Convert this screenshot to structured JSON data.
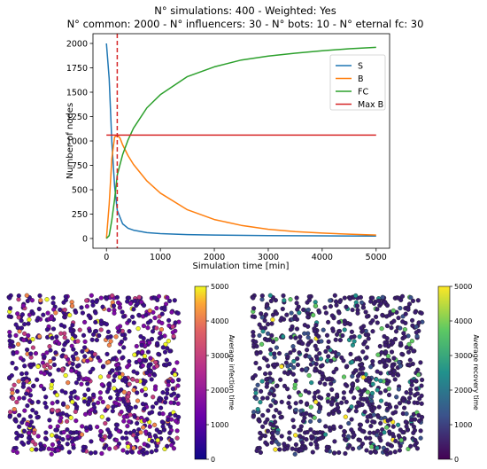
{
  "chart_data": [
    {
      "type": "line",
      "title_lines": [
        "N° simulations: 400 - Weighted: Yes",
        "N° common: 2000 - N° influencers: 30 - N° bots: 10 - N° eternal fc: 30"
      ],
      "xlabel": "Simulation time [min]",
      "ylabel": "Number of nodes",
      "xlim": [
        -250,
        5250
      ],
      "ylim": [
        -100,
        2100
      ],
      "xticks": [
        0,
        1000,
        2000,
        3000,
        4000,
        5000
      ],
      "yticks": [
        0,
        250,
        500,
        750,
        1000,
        1250,
        1500,
        1750,
        2000
      ],
      "grid": false,
      "legend_position": "upper right",
      "series": [
        {
          "name": "S",
          "color": "#1f77b4",
          "x": [
            0,
            50,
            100,
            150,
            200,
            300,
            400,
            500,
            750,
            1000,
            1500,
            2000,
            3000,
            4000,
            5000
          ],
          "y": [
            2000,
            1640,
            990,
            540,
            290,
            150,
            105,
            85,
            60,
            50,
            40,
            35,
            30,
            27,
            25
          ]
        },
        {
          "name": "B",
          "color": "#ff7f0e",
          "x": [
            0,
            50,
            100,
            150,
            200,
            250,
            300,
            400,
            500,
            750,
            1000,
            1500,
            2000,
            2500,
            3000,
            3500,
            4000,
            4500,
            5000
          ],
          "y": [
            0,
            350,
            820,
            1040,
            1060,
            1030,
            960,
            850,
            760,
            590,
            465,
            295,
            195,
            135,
            95,
            70,
            55,
            45,
            35
          ]
        },
        {
          "name": "FC",
          "color": "#2ca02c",
          "x": [
            0,
            50,
            100,
            150,
            200,
            300,
            400,
            500,
            750,
            1000,
            1500,
            2000,
            2500,
            3000,
            3500,
            4000,
            4500,
            5000
          ],
          "y": [
            0,
            30,
            190,
            400,
            650,
            860,
            1010,
            1130,
            1340,
            1475,
            1660,
            1760,
            1830,
            1870,
            1900,
            1925,
            1945,
            1960
          ]
        },
        {
          "name": "Max B",
          "color": "#d62728",
          "x": [
            0,
            5000
          ],
          "y": [
            1060,
            1060
          ]
        }
      ],
      "vline": {
        "x": 200,
        "color": "#d62728",
        "style": "dashed"
      }
    },
    {
      "type": "scatter",
      "colorbar_label": "Average infection time",
      "colormap": "plasma",
      "clim": [
        0,
        5000
      ],
      "colorbar_ticks": [
        0,
        1000,
        2000,
        3000,
        4000,
        5000
      ]
    },
    {
      "type": "scatter",
      "colorbar_label": "Average recovery time",
      "colormap": "viridis",
      "clim": [
        0,
        5000
      ],
      "colorbar_ticks": [
        0,
        1000,
        2000,
        3000,
        4000,
        5000
      ]
    }
  ]
}
